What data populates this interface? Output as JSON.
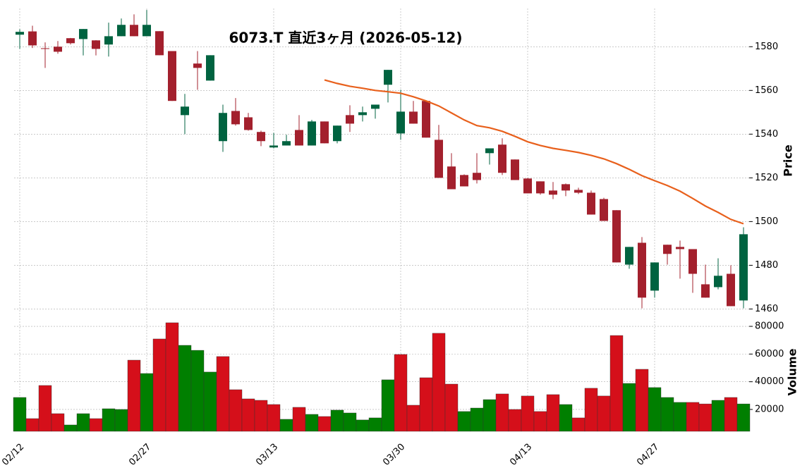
{
  "chart_data": {
    "type": "candlestick",
    "title": "6073.T  直近3ヶ月  (2026-05-12)",
    "categories": [
      "02/12",
      null,
      null,
      null,
      null,
      null,
      null,
      null,
      null,
      null,
      "02/27",
      null,
      null,
      null,
      null,
      null,
      null,
      null,
      null,
      null,
      "03/13",
      null,
      null,
      null,
      null,
      null,
      null,
      null,
      null,
      null,
      "03/30",
      null,
      null,
      null,
      null,
      null,
      null,
      null,
      null,
      null,
      "04/13",
      null,
      null,
      null,
      null,
      null,
      null,
      null,
      null,
      null,
      "04/27",
      null,
      null,
      null,
      null,
      null,
      null,
      null
    ],
    "open": [
      1585.5,
      1587,
      1579.3,
      1580,
      1583.9,
      1583.5,
      1582.9,
      1581,
      1584.8,
      1590,
      1584.8,
      1587.1,
      1578,
      1548.7,
      1572.3,
      1564.5,
      1536.8,
      1550.6,
      1547.7,
      1541,
      1533.9,
      1534.8,
      1541.9,
      1534.8,
      1545.8,
      1536.8,
      1548.7,
      1548.7,
      1551.6,
      1562.6,
      1540.3,
      1550.3,
      1555.2,
      1537.4,
      1525.2,
      1521.3,
      1522.3,
      1531.3,
      1535.2,
      1528.4,
      1519.7,
      1518.4,
      1514.2,
      1517.1,
      1514.5,
      1513.2,
      1510.3,
      1505.2,
      1480.3,
      1490.3,
      1468.4,
      1489.4,
      1488.4,
      1487.4,
      1471.3,
      1470,
      1476.1,
      1463.9
    ],
    "high": [
      1588,
      1589.6,
      1582,
      1582.6,
      1584,
      1588.1,
      1583,
      1591,
      1592.9,
      1594.8,
      1596.8,
      1587.1,
      1578,
      1558.4,
      1578,
      1576.1,
      1553.5,
      1556.5,
      1549.7,
      1541.6,
      1540.6,
      1539.7,
      1548.7,
      1546.5,
      1545.8,
      1543.9,
      1553.2,
      1552.6,
      1553.5,
      1569.4,
      1560.3,
      1555.2,
      1555.2,
      1544.2,
      1531.3,
      1521.6,
      1531.3,
      1533.5,
      1538.1,
      1528.4,
      1520,
      1518.4,
      1518.1,
      1517.4,
      1515.5,
      1514.2,
      1510.9,
      1505.2,
      1488.4,
      1492.9,
      1481.3,
      1489.4,
      1491.3,
      1487.4,
      1480.3,
      1483.2,
      1480,
      1497.4
    ],
    "low": [
      1579,
      1579.4,
      1570.3,
      1576.8,
      1581,
      1576,
      1576,
      1575.5,
      1584.8,
      1584.8,
      1584.8,
      1576.1,
      1555.2,
      1540,
      1560.3,
      1564.5,
      1531.9,
      1543.9,
      1541.6,
      1534.5,
      1533.5,
      1534.8,
      1534.8,
      1534.8,
      1535.8,
      1535.8,
      1541,
      1545.8,
      1547.1,
      1554.5,
      1537.4,
      1544.8,
      1538.4,
      1520,
      1514.8,
      1516.1,
      1517.4,
      1526.1,
      1521.3,
      1519,
      1512.9,
      1512.3,
      1510.3,
      1511.6,
      1512.6,
      1503.2,
      1500.3,
      1481.3,
      1478.4,
      1460.3,
      1465.2,
      1480.3,
      1473.9,
      1467.4,
      1465.2,
      1469,
      1461.3,
      1460.3
    ],
    "close": [
      1586.8,
      1580.6,
      1579,
      1577.7,
      1581.6,
      1588.1,
      1579,
      1584.8,
      1590,
      1584.8,
      1590,
      1576.1,
      1555.2,
      1552.6,
      1570.3,
      1576.1,
      1549.7,
      1544.5,
      1541.9,
      1536.8,
      1534.8,
      1536.8,
      1534.8,
      1545.8,
      1535.8,
      1543.9,
      1544.8,
      1550,
      1553.5,
      1569.4,
      1550.3,
      1544.8,
      1538.4,
      1520,
      1514.8,
      1516.1,
      1519,
      1533.5,
      1522.3,
      1519,
      1512.9,
      1512.9,
      1512.3,
      1514.2,
      1513.2,
      1503.2,
      1500.3,
      1481.3,
      1488.4,
      1465.2,
      1481.3,
      1485.2,
      1487.4,
      1476.1,
      1465.2,
      1475.2,
      1461.3,
      1494.2
    ],
    "up_color": "#006340",
    "down_color": "#a3202d",
    "ma": {
      "color": "#e8601c",
      "values": [
        null,
        null,
        null,
        null,
        null,
        null,
        null,
        null,
        null,
        null,
        null,
        null,
        null,
        null,
        null,
        null,
        null,
        null,
        null,
        null,
        null,
        null,
        null,
        null,
        1564.8,
        1563.2,
        1561.9,
        1561,
        1560,
        1559.4,
        1558.7,
        1557.1,
        1555.2,
        1552.9,
        1549.7,
        1546.5,
        1543.9,
        1542.9,
        1541.3,
        1539,
        1536.5,
        1534.8,
        1533.5,
        1532.6,
        1531.6,
        1530.3,
        1528.7,
        1526.5,
        1523.9,
        1521,
        1518.7,
        1516.5,
        1513.9,
        1510.6,
        1507.1,
        1504.2,
        1501,
        1499
      ]
    },
    "ylabel": "Price",
    "ylim": [
      1459.5,
      1597.5
    ],
    "yticks": [
      1460,
      1480,
      1500,
      1520,
      1540,
      1560,
      1580
    ],
    "volume": [
      28650,
      13380,
      37300,
      16950,
      8800,
      16950,
      13380,
      20500,
      20000,
      55600,
      45950,
      70900,
      82600,
      66300,
      62700,
      47000,
      58200,
      34250,
      27630,
      26600,
      23560,
      12880,
      21530,
      16440,
      14900,
      19500,
      17450,
      12400,
      13900,
      41400,
      59700,
      23050,
      42900,
      75000,
      38300,
      18500,
      21000,
      27100,
      31200,
      20000,
      29700,
      18500,
      30700,
      23560,
      13900,
      35300,
      29700,
      73400,
      38800,
      49000,
      35800,
      28650,
      25100,
      25100,
      24000,
      26600,
      28650,
      24000
    ],
    "volume_colors": [
      "#007f00",
      "#d50f1a",
      "#d50f1a",
      "#d50f1a",
      "#007f00",
      "#007f00",
      "#d50f1a",
      "#007f00",
      "#007f00",
      "#d50f1a",
      "#007f00",
      "#d50f1a",
      "#d50f1a",
      "#007f00",
      "#007f00",
      "#007f00",
      "#d50f1a",
      "#d50f1a",
      "#d50f1a",
      "#d50f1a",
      "#d50f1a",
      "#007f00",
      "#d50f1a",
      "#007f00",
      "#d50f1a",
      "#007f00",
      "#007f00",
      "#007f00",
      "#007f00",
      "#007f00",
      "#d50f1a",
      "#d50f1a",
      "#d50f1a",
      "#d50f1a",
      "#d50f1a",
      "#007f00",
      "#007f00",
      "#007f00",
      "#d50f1a",
      "#d50f1a",
      "#d50f1a",
      "#d50f1a",
      "#d50f1a",
      "#007f00",
      "#d50f1a",
      "#d50f1a",
      "#d50f1a",
      "#d50f1a",
      "#007f00",
      "#d50f1a",
      "#007f00",
      "#007f00",
      "#007f00",
      "#d50f1a",
      "#d50f1a",
      "#007f00",
      "#d50f1a",
      "#007f00"
    ],
    "y2label": "Volume",
    "y2lim": [
      4200,
      89200
    ],
    "y2ticks": [
      20000,
      40000,
      60000,
      80000
    ],
    "grid": true
  }
}
